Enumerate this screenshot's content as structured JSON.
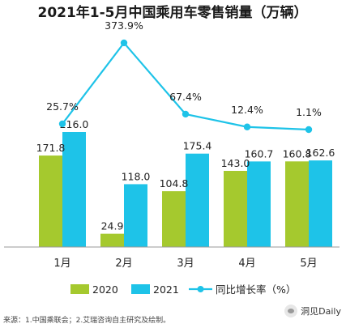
{
  "chart_data": {
    "type": "bar",
    "title": "2021年1-5月中国乘用车零售销量（万辆）",
    "categories": [
      "1月",
      "2月",
      "3月",
      "4月",
      "5月"
    ],
    "series": [
      {
        "name": "2020",
        "type": "bar",
        "values": [
          171.8,
          24.9,
          104.8,
          143.0,
          160.8
        ],
        "labels": [
          "171.8",
          "24.9",
          "104.8",
          "143.0",
          "160.8"
        ],
        "color": "#a5c92e"
      },
      {
        "name": "2021",
        "type": "bar",
        "values": [
          216.0,
          118.0,
          175.4,
          160.7,
          162.6
        ],
        "labels": [
          "216.0",
          "118.0",
          "175.4",
          "160.7",
          "162.6"
        ],
        "color": "#1ec3e8"
      },
      {
        "name": "同比增长率（%）",
        "type": "line",
        "values": [
          25.7,
          373.9,
          67.4,
          12.4,
          1.1
        ],
        "labels": [
          "25.7%",
          "373.9%",
          "67.4%",
          "12.4%",
          "1.1%"
        ],
        "color": "#1ec3e8"
      }
    ],
    "ylim_bar": [
      0,
      240
    ],
    "ylim_line": [
      0,
      420
    ],
    "grid": false,
    "legend": "bottom"
  },
  "source_note": "来源：1.中国乘联会；2.艾瑞咨询自主研究及绘制。",
  "watermark": "洞见Daily"
}
